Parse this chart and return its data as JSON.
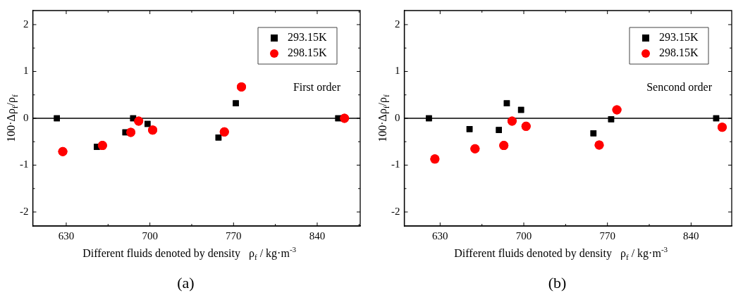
{
  "chart_data": [
    {
      "type": "scatter",
      "xlabel": "Different fluids denoted by density   ρ$_{f}$ / kg·m$^{-3}$",
      "ylabel": "100·Δρ$_{f}$/ρ$_{f}$",
      "xlim": [
        602,
        876
      ],
      "xticks": [
        630,
        {
          "value": 665,
          "label": null
        },
        700,
        {
          "value": 735,
          "label": null
        },
        770,
        {
          "value": 805,
          "label": null
        },
        840,
        {
          "value": 875,
          "label": null
        }
      ],
      "ylim": [
        -2.3,
        2.3
      ],
      "yticks": [
        -2,
        {
          "value": -1.5,
          "label": null
        },
        -1,
        {
          "value": -0.5,
          "label": null
        },
        0,
        {
          "value": 0.5,
          "label": null
        },
        1,
        {
          "value": 1.5,
          "label": null
        },
        2
      ],
      "grid": false,
      "legend": "top right",
      "ref_lines": [
        {
          "axis": "y",
          "value": 0,
          "color": "#000000"
        }
      ],
      "annotations": [
        "First order",
        "(a)"
      ],
      "series": [
        {
          "name": "293.15K",
          "color": "#000000",
          "marker": "square",
          "x": [
            622.2,
            655.6,
            679.5,
            686,
            698,
            757.4,
            771.9,
            857.6
          ],
          "values": [
            0,
            -0.61,
            -0.3,
            0,
            -0.12,
            -0.41,
            0.32,
            0
          ]
        },
        {
          "name": "298.15K",
          "color": "#ff0000",
          "marker": "circle",
          "x": [
            627.1,
            660.3,
            684,
            690.6,
            702.3,
            762.3,
            776.6,
            862.8
          ],
          "values": [
            -0.71,
            -0.58,
            -0.3,
            -0.06,
            -0.25,
            -0.29,
            0.67,
            0
          ]
        }
      ]
    },
    {
      "type": "scatter",
      "xlabel": "Different fluids denoted by density   ρ$_{f}$ / kg·m$^{-3}$",
      "ylabel": "100·Δρ$_{f}$/ρ$_{f}$",
      "xlim": [
        600,
        874
      ],
      "xticks": [
        630,
        {
          "value": 665,
          "label": null
        },
        700,
        {
          "value": 735,
          "label": null
        },
        770,
        {
          "value": 805,
          "label": null
        },
        840
      ],
      "ylim": [
        -2.3,
        2.3
      ],
      "yticks": [
        -2,
        {
          "value": -1.5,
          "label": null
        },
        -1,
        {
          "value": -0.5,
          "label": null
        },
        0,
        {
          "value": 0.5,
          "label": null
        },
        1,
        {
          "value": 1.5,
          "label": null
        },
        2
      ],
      "grid": false,
      "legend": "top right",
      "ref_lines": [
        {
          "axis": "y",
          "value": 0,
          "color": "#000000"
        }
      ],
      "annotations": [
        "Sencond order",
        "(b)"
      ],
      "series": [
        {
          "name": "293.15K",
          "color": "#000000",
          "marker": "square",
          "x": [
            620.6,
            654.6,
            679.2,
            685.8,
            697.7,
            758.3,
            773.1,
            861
          ],
          "values": [
            0,
            -0.23,
            -0.25,
            0.32,
            0.18,
            -0.32,
            -0.02,
            0
          ]
        },
        {
          "name": "298.15K",
          "color": "#ff0000",
          "marker": "circle",
          "x": [
            625.6,
            659.2,
            683.3,
            690.2,
            701.9,
            763.1,
            777.9,
            866
          ],
          "values": [
            -0.87,
            -0.65,
            -0.58,
            -0.06,
            -0.17,
            -0.57,
            0.18,
            -0.19
          ]
        }
      ]
    }
  ]
}
